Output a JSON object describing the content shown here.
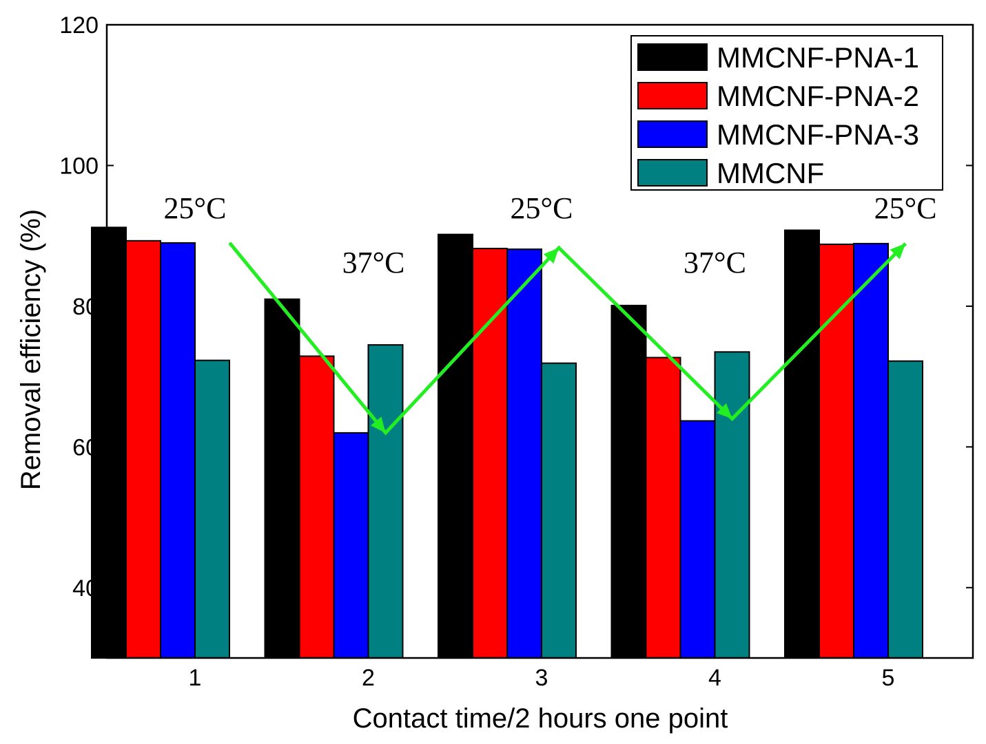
{
  "chart_data": {
    "type": "bar",
    "categories": [
      "1",
      "2",
      "3",
      "4",
      "5"
    ],
    "series": [
      {
        "name": "MMCNF-PNA-1",
        "color": "#000000",
        "values": [
          91.2,
          81.0,
          90.2,
          80.1,
          90.8
        ]
      },
      {
        "name": "MMCNF-PNA-2",
        "color": "#ff0000",
        "values": [
          89.3,
          72.9,
          88.2,
          72.7,
          88.8
        ]
      },
      {
        "name": "MMCNF-PNA-3",
        "color": "#0000ff",
        "values": [
          89.0,
          62.0,
          88.1,
          63.7,
          88.9
        ]
      },
      {
        "name": "MMCNF",
        "color": "#008080",
        "values": [
          72.3,
          74.5,
          71.9,
          73.5,
          72.2
        ]
      }
    ],
    "xlabel": "Contact time/2 hours one point",
    "ylabel": "Removal efficiency (%)",
    "ylim": [
      30,
      120
    ],
    "yticks": [
      40,
      60,
      80,
      100,
      120
    ],
    "legend_position": "top-right",
    "trend_line": {
      "color": "#22ee22",
      "points": [
        [
          1.2,
          89.0
        ],
        [
          2.1,
          62.0
        ],
        [
          3.1,
          88.3
        ],
        [
          4.1,
          64.0
        ],
        [
          5.1,
          88.9
        ]
      ]
    },
    "annotations": [
      {
        "text": "25°C",
        "x": 1.0,
        "y": 92.5
      },
      {
        "text": "37°C",
        "x": 2.03,
        "y": 84.8
      },
      {
        "text": "25°C",
        "x": 3.0,
        "y": 92.5
      },
      {
        "text": "37°C",
        "x": 4.0,
        "y": 84.8
      },
      {
        "text": "25°C",
        "x": 5.1,
        "y": 92.5
      }
    ]
  }
}
